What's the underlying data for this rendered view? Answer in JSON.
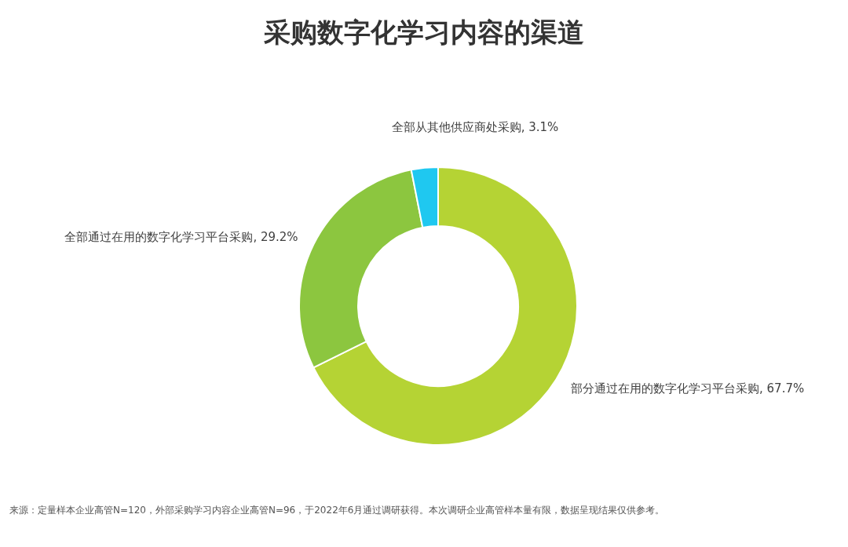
{
  "chart_data": {
    "type": "donut",
    "title": "采购数字化学习内容的渠道",
    "categories": [
      "部分通过在用的数字化学习平台采购",
      "全部通过在用的数字化学习平台采购",
      "全部从其他供应商处采购"
    ],
    "values": [
      67.7,
      29.2,
      3.1
    ],
    "value_labels": [
      "67.7%",
      "29.2%",
      "3.1%"
    ],
    "colors": [
      "#b5d334",
      "#8cc63f",
      "#1fc8f0"
    ],
    "legend": false,
    "annotations": [
      "来源：定量样本企业高管N=120，外部采购学习内容企业高管N=96，于2022年6月通过调研获得。本次调研企业高管样本量有限，数据呈现结果仅供参考。"
    ]
  }
}
